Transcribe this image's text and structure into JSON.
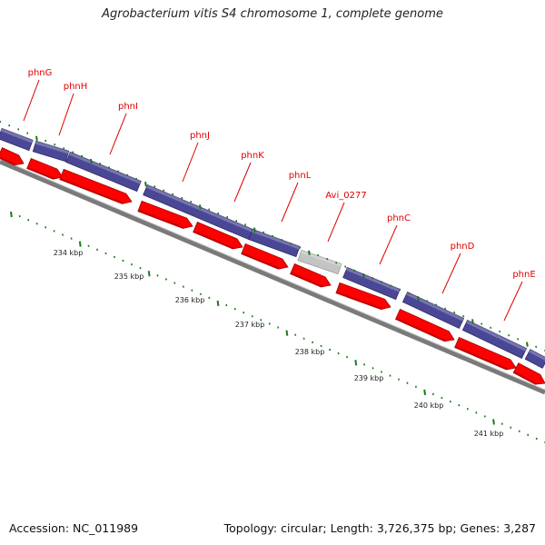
{
  "title": "Agrobacterium vitis S4 chromosome 1, complete genome",
  "footer": {
    "accession": "Accession: NC_011989",
    "topology": "Topology: circular; Length: 3,726,375 bp; Genes: 3,287"
  },
  "genes": [
    {
      "name": "phnG"
    },
    {
      "name": "phnH"
    },
    {
      "name": "phnI"
    },
    {
      "name": "phnJ"
    },
    {
      "name": "phnK"
    },
    {
      "name": "phnL"
    },
    {
      "name": "Avi_0277"
    },
    {
      "name": "phnC"
    },
    {
      "name": "phnD"
    },
    {
      "name": "phnE"
    }
  ],
  "kbp_labels": [
    "234 kbp",
    "235 kbp",
    "236 kbp",
    "237 kbp",
    "238 kbp",
    "239 kbp",
    "240 kbp",
    "241 kbp"
  ],
  "colors": {
    "cds": "#ff0000",
    "cds_dark": "#b40000",
    "gene_band": "#4a4796",
    "gene_band_light": "#7773b8",
    "unknown_gene": "#c4c4c4",
    "backbone": "#7a7a7a",
    "backbone_light": "#c8c8c8",
    "tick": "#1a7a1a",
    "label": "#e00000"
  }
}
